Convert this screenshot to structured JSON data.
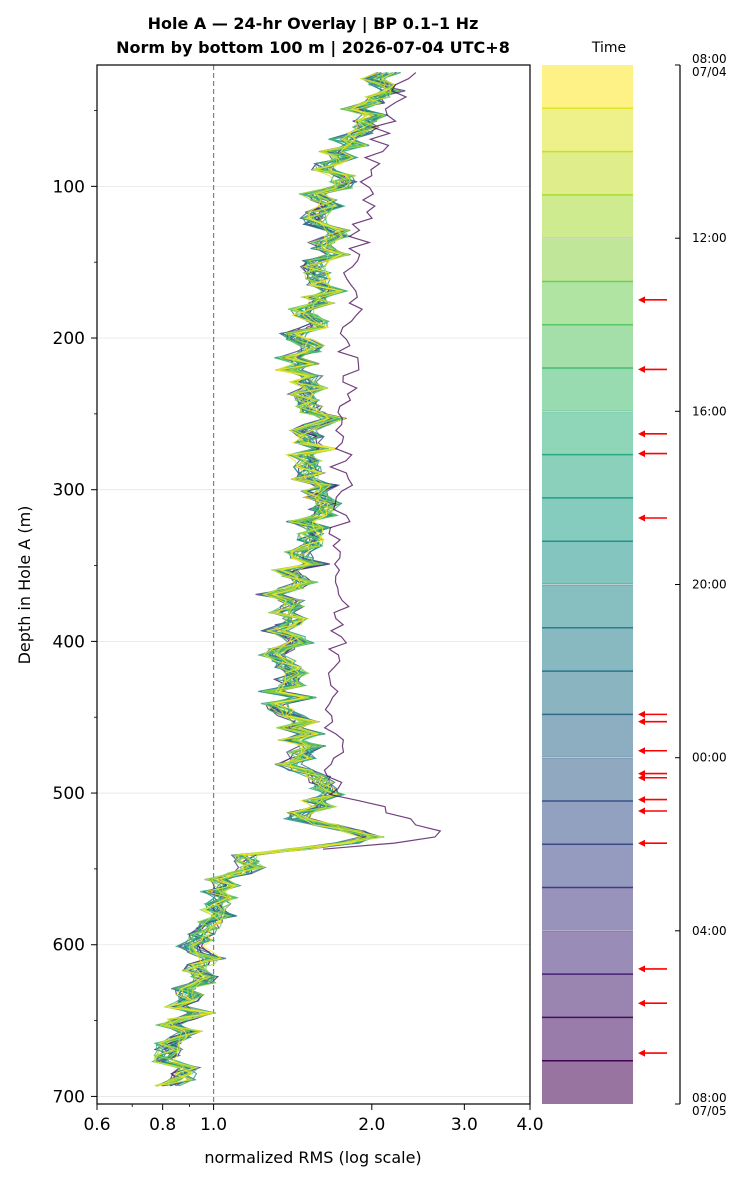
{
  "chart_data": {
    "type": "line",
    "title_line1": "Hole A — 24-hr Overlay  |  BP 0.1–1 Hz",
    "title_line2": "Norm by bottom 100 m  |  2026-07-04 UTC+8",
    "xlabel": "normalized RMS  (log scale)",
    "ylabel": "Depth in Hole A (m)",
    "x_scale": "log",
    "xlim": [
      0.6,
      4.0
    ],
    "ylim": [
      705,
      20
    ],
    "y_inverted": true,
    "x_ticks": [
      {
        "value": 0.6,
        "label": "0.6"
      },
      {
        "value": 0.8,
        "label": "0.8"
      },
      {
        "value": 1.0,
        "label": "1.0"
      },
      {
        "value": 2.0,
        "label": "2.0"
      },
      {
        "value": 3.0,
        "label": "3.0"
      },
      {
        "value": 4.0,
        "label": "4.0"
      }
    ],
    "y_ticks": [
      100,
      200,
      300,
      400,
      500,
      600,
      700
    ],
    "grid": "horizontal",
    "reference_line": {
      "x": 1.0,
      "style": "dashed",
      "color": "#808080"
    },
    "colormap": "viridis",
    "series_count": 24,
    "mean_profile": {
      "depth": [
        25,
        40,
        60,
        80,
        100,
        120,
        150,
        175,
        200,
        230,
        262,
        290,
        320,
        345,
        365,
        390,
        420,
        445,
        460,
        480,
        500,
        515,
        530,
        540,
        560,
        590,
        610,
        640,
        660,
        680,
        700
      ],
      "rms": [
        2.1,
        2.0,
        1.85,
        1.75,
        1.65,
        1.6,
        1.65,
        1.55,
        1.45,
        1.5,
        1.6,
        1.55,
        1.58,
        1.48,
        1.38,
        1.35,
        1.35,
        1.4,
        1.45,
        1.5,
        1.55,
        1.5,
        2.0,
        1.15,
        1.05,
        1.0,
        0.92,
        0.9,
        0.88,
        0.86,
        0.82
      ]
    },
    "outlier_series_offset": [
      {
        "depth": 25,
        "rms": 2.35
      },
      {
        "depth": 60,
        "rms": 2.1
      },
      {
        "depth": 150,
        "rms": 1.85
      },
      {
        "depth": 290,
        "rms": 1.75
      },
      {
        "depth": 500,
        "rms": 1.7
      },
      {
        "depth": 528,
        "rms": 2.8
      },
      {
        "depth": 540,
        "rms": 1.15
      }
    ],
    "colorbar": {
      "label": "Time",
      "tick_labels": [
        {
          "time": "08:00",
          "date": "07/04",
          "fraction": 0.0
        },
        {
          "time": "12:00",
          "date": "",
          "fraction": 0.1667
        },
        {
          "time": "16:00",
          "date": "",
          "fraction": 0.3333
        },
        {
          "time": "20:00",
          "date": "",
          "fraction": 0.5
        },
        {
          "time": "00:00",
          "date": "",
          "fraction": 0.6667
        },
        {
          "time": "04:00",
          "date": "",
          "fraction": 0.8333
        },
        {
          "time": "08:00",
          "date": "07/05",
          "fraction": 1.0
        }
      ],
      "bands": 24,
      "arrow_color": "#ff0000",
      "arrow_fractions": [
        0.226,
        0.293,
        0.355,
        0.374,
        0.436,
        0.625,
        0.632,
        0.66,
        0.682,
        0.686,
        0.707,
        0.718,
        0.749,
        0.87,
        0.903,
        0.951
      ]
    }
  }
}
